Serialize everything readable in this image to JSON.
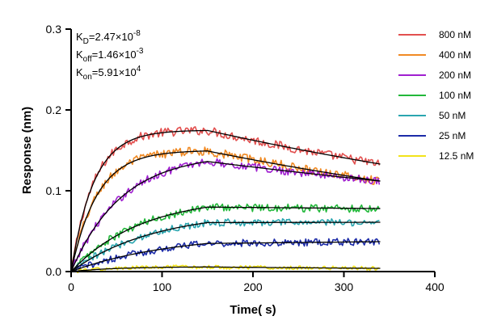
{
  "chart_data": {
    "type": "line",
    "xlabel": "Time( s)",
    "ylabel": "Response (nm)",
    "xlim": [
      0,
      400
    ],
    "ylim": [
      0,
      0.3
    ],
    "xticks": [
      "0",
      "100",
      "200",
      "300",
      "400"
    ],
    "yticks": [
      "0.0",
      "0.1",
      "0.2",
      "0.3"
    ],
    "grid": false,
    "legend_position": "top-right",
    "association_end_s": 150,
    "end_s": 340,
    "annotations": [
      {
        "key": "kd",
        "label": "K",
        "sub": "D",
        "text": "=2.47×10",
        "sup": "-8"
      },
      {
        "key": "koff",
        "label": "K",
        "sub": "off",
        "text": "=1.46×10",
        "sup": "-3"
      },
      {
        "key": "kon",
        "label": "K",
        "sub": "on",
        "text": "=5.91×10",
        "sup": "4"
      }
    ],
    "fit_color": "#000000",
    "series": [
      {
        "name": "800 nM",
        "color": "#e2504f",
        "plateau": 0.175,
        "end": 0.133,
        "k": 0.04,
        "noise": 0.0055
      },
      {
        "name": "400 nM",
        "color": "#f08a24",
        "plateau": 0.15,
        "end": 0.112,
        "k": 0.035,
        "noise": 0.0055
      },
      {
        "name": "200 nM",
        "color": "#a020d0",
        "plateau": 0.146,
        "end": 0.112,
        "k": 0.018,
        "noise": 0.005
      },
      {
        "name": "100 nM",
        "color": "#22b83a",
        "plateau": 0.093,
        "end": 0.078,
        "k": 0.013,
        "noise": 0.005
      },
      {
        "name": "50 nM",
        "color": "#2aa6b0",
        "plateau": 0.075,
        "end": 0.061,
        "k": 0.011,
        "noise": 0.0045
      },
      {
        "name": "25 nM",
        "color": "#1c2ba8",
        "plateau": 0.047,
        "end": 0.037,
        "k": 0.009,
        "noise": 0.0045
      },
      {
        "name": "12.5 nM",
        "color": "#f2e31a",
        "plateau": 0.006,
        "end": 0.004,
        "k": 0.02,
        "noise": 0.0025
      }
    ]
  }
}
